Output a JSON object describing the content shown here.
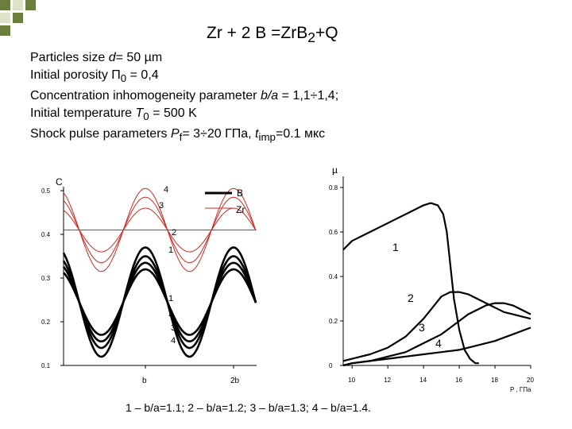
{
  "title": {
    "main": "Zr + 2 B =ZrB",
    "sub": "2",
    "tail": "+Q"
  },
  "params": [
    {
      "pre": "Particles size ",
      "it": "d",
      "post": "= 50 µm",
      "sub": "",
      "post2": ""
    },
    {
      "pre": "Initial porosity П",
      "it": "",
      "post": "",
      "sub": "0",
      "post2": " = 0,4"
    },
    {
      "pre": "Concentration inhomogeneity parameter ",
      "it": "b/a",
      "post": " = 1,1÷1,4;",
      "sub": "",
      "post2": ""
    },
    {
      "pre": "Initial temperature ",
      "it": "T",
      "post": "",
      "sub": "0",
      "post2": " = 500 K"
    },
    {
      "pre": "Shock pulse parameters ",
      "it": "P",
      "post": "",
      "sub": "f",
      "post2": "= 3÷20 ГПа, "
    }
  ],
  "params_tail": {
    "it": "t",
    "sub": "imp",
    "post": "=0.1 мкс"
  },
  "caption": "1 – b/a=1.1; 2 – b/a=1.2; 3 – b/a=1.3; 4 – b/a=1.4.",
  "colors": {
    "deco_green": "#6c7e3e",
    "deco_light": "#dde3c8",
    "red": "#cc2a22",
    "black": "#000000"
  },
  "chart_data": [
    {
      "type": "line",
      "ylabel": "C",
      "xticks": [
        "b",
        "2b"
      ],
      "yticks": [
        "0.1",
        "0.2",
        "0.3",
        "0.4",
        "0.5"
      ],
      "ylim": [
        0.1,
        0.5
      ],
      "legend": [
        {
          "name": "B",
          "color": "#000000"
        },
        {
          "name": "Zr",
          "color": "#cc2a22"
        }
      ],
      "series": [
        {
          "name": "Zr 1",
          "color": "#cc2a22",
          "label": "1",
          "mean": 0.41,
          "amp": 0.0
        },
        {
          "name": "Zr 2",
          "color": "#cc2a22",
          "label": "2",
          "mean": 0.41,
          "amp": 0.05
        },
        {
          "name": "Zr 3",
          "color": "#cc2a22",
          "label": "3",
          "mean": 0.41,
          "amp": 0.075
        },
        {
          "name": "Zr 4",
          "color": "#cc2a22",
          "label": "4",
          "mean": 0.41,
          "amp": 0.095
        },
        {
          "name": "B 1",
          "color": "#000000",
          "label": "1",
          "mean": 0.245,
          "amp": 0.075
        },
        {
          "name": "B 2",
          "color": "#000000",
          "label": "2",
          "mean": 0.245,
          "amp": 0.09
        },
        {
          "name": "B 3",
          "color": "#000000",
          "label": "3",
          "mean": 0.245,
          "amp": 0.105
        },
        {
          "name": "B 4",
          "color": "#000000",
          "label": "4",
          "mean": 0.245,
          "amp": 0.125
        }
      ]
    },
    {
      "type": "line",
      "ylabel": "µ",
      "xlabel": "P , ГПа",
      "xticks": [
        10,
        12,
        14,
        16,
        18,
        20
      ],
      "yticks": [
        "0",
        "0.2",
        "0.4",
        "0.6",
        "0.8"
      ],
      "xlim": [
        9.5,
        20
      ],
      "ylim": [
        0,
        0.85
      ],
      "series": [
        {
          "name": "1",
          "label": "1",
          "x": [
            9.5,
            10,
            11,
            12,
            12.5,
            13,
            13.5,
            14,
            14.4,
            14.8,
            15.1,
            15.3,
            15.5,
            15.7,
            16,
            16.3,
            16.6,
            16.9,
            17.1
          ],
          "y": [
            0.52,
            0.56,
            0.6,
            0.64,
            0.66,
            0.68,
            0.7,
            0.72,
            0.73,
            0.72,
            0.68,
            0.6,
            0.45,
            0.3,
            0.16,
            0.07,
            0.03,
            0.01,
            0.01
          ]
        },
        {
          "name": "2",
          "label": "2",
          "x": [
            9.5,
            10,
            11,
            12,
            13,
            14,
            14.5,
            15,
            15.5,
            16,
            16.5,
            17,
            17.5,
            18,
            18.5,
            19,
            19.5,
            20
          ],
          "y": [
            0.02,
            0.03,
            0.05,
            0.08,
            0.13,
            0.21,
            0.26,
            0.31,
            0.33,
            0.33,
            0.32,
            0.3,
            0.28,
            0.26,
            0.24,
            0.23,
            0.22,
            0.21
          ]
        },
        {
          "name": "3",
          "label": "3",
          "x": [
            9.5,
            10,
            11,
            12,
            13,
            14,
            15,
            15.5,
            16,
            16.5,
            17,
            17.5,
            18,
            18.5,
            19,
            19.5,
            20
          ],
          "y": [
            0.0,
            0.01,
            0.02,
            0.04,
            0.06,
            0.1,
            0.14,
            0.17,
            0.2,
            0.23,
            0.25,
            0.27,
            0.28,
            0.28,
            0.27,
            0.25,
            0.23
          ]
        },
        {
          "name": "4",
          "label": "4",
          "x": [
            9.5,
            10,
            11,
            12,
            13,
            14,
            15,
            16,
            17,
            18,
            19,
            20
          ],
          "y": [
            0.0,
            0.01,
            0.02,
            0.03,
            0.04,
            0.05,
            0.06,
            0.07,
            0.09,
            0.11,
            0.14,
            0.17
          ]
        }
      ]
    }
  ]
}
